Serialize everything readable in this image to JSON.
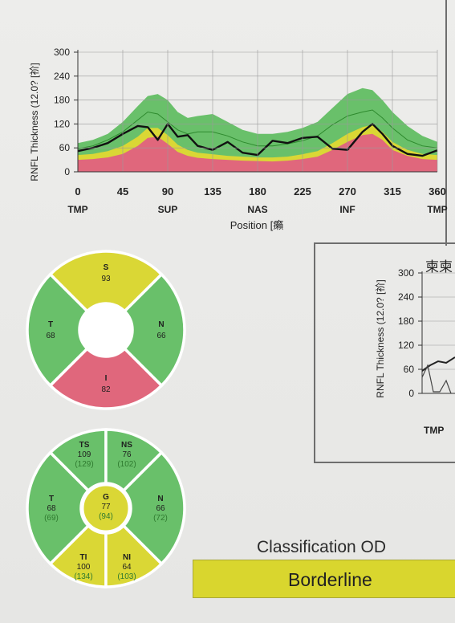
{
  "colors": {
    "normal": "#69c06a",
    "borderline": "#dad735",
    "outside": "#e0677c",
    "background": "#ebebe9",
    "curve": "#111111"
  },
  "main_chart": {
    "chart_data": {
      "type": "area",
      "ylabel": "RNFL Thickness (12.0? [祄]",
      "xlabel": "Position [癩",
      "yticks": [
        "0",
        "60",
        "120",
        "180",
        "240",
        "300"
      ],
      "xticks": [
        "0",
        "45",
        "90",
        "135",
        "180",
        "225",
        "270",
        "315",
        "360"
      ],
      "region_labels": [
        "TMP",
        "SUP",
        "NAS",
        "INF",
        "TMP"
      ],
      "xlim": [
        0,
        360
      ],
      "ylim": [
        0,
        300
      ],
      "x": [
        0,
        15,
        30,
        45,
        60,
        70,
        80,
        90,
        100,
        110,
        120,
        135,
        150,
        165,
        180,
        195,
        210,
        225,
        240,
        255,
        270,
        285,
        295,
        305,
        315,
        330,
        345,
        360
      ],
      "series": [
        {
          "role": "outside-band-top",
          "values": [
            30,
            32,
            36,
            45,
            65,
            85,
            88,
            70,
            50,
            40,
            35,
            32,
            30,
            28,
            27,
            26,
            28,
            32,
            38,
            55,
            75,
            92,
            95,
            80,
            55,
            40,
            32,
            30
          ]
        },
        {
          "role": "borderline-band-top",
          "values": [
            42,
            45,
            52,
            65,
            88,
            110,
            110,
            92,
            68,
            55,
            48,
            44,
            40,
            38,
            36,
            36,
            38,
            44,
            52,
            72,
            95,
            112,
            118,
            100,
            75,
            55,
            45,
            42
          ]
        },
        {
          "role": "normal-band-top",
          "values": [
            72,
            80,
            95,
            125,
            165,
            190,
            195,
            180,
            150,
            135,
            140,
            145,
            125,
            105,
            95,
            95,
            100,
            110,
            125,
            160,
            195,
            210,
            205,
            180,
            150,
            115,
            90,
            75
          ]
        },
        {
          "role": "normal-mean",
          "values": [
            58,
            65,
            80,
            100,
            130,
            150,
            145,
            125,
            105,
            95,
            100,
            100,
            90,
            75,
            65,
            65,
            70,
            78,
            90,
            118,
            140,
            150,
            155,
            135,
            110,
            80,
            65,
            60
          ]
        },
        {
          "role": "patient",
          "values": [
            52,
            60,
            72,
            95,
            115,
            112,
            80,
            120,
            88,
            92,
            65,
            55,
            75,
            48,
            42,
            78,
            72,
            85,
            88,
            58,
            55,
            100,
            120,
            95,
            65,
            45,
            40,
            54
          ]
        }
      ]
    }
  },
  "sector_chart": {
    "sectors": [
      {
        "label": "S",
        "value": "93",
        "status": "borderline"
      },
      {
        "label": "T",
        "value": "68",
        "status": "normal"
      },
      {
        "label": "N",
        "value": "66",
        "status": "normal"
      },
      {
        "label": "I",
        "value": "82",
        "status": "outside"
      }
    ]
  },
  "clock_chart": {
    "sectors": [
      {
        "label": "TS",
        "value": "109",
        "ref": "(129)",
        "status": "normal"
      },
      {
        "label": "NS",
        "value": "76",
        "ref": "(102)",
        "status": "normal"
      },
      {
        "label": "T",
        "value": "68",
        "ref": "(69)",
        "status": "normal"
      },
      {
        "label": "N",
        "value": "66",
        "ref": "(72)",
        "status": "normal"
      },
      {
        "label": "TI",
        "value": "100",
        "ref": "(134)",
        "status": "borderline"
      },
      {
        "label": "NI",
        "value": "64",
        "ref": "(103)",
        "status": "borderline"
      }
    ],
    "global": {
      "label": "G",
      "value": "77",
      "ref": "(94)",
      "status": "borderline"
    }
  },
  "second_chart": {
    "chart_data": {
      "type": "line",
      "title": "柬柬",
      "ylabel": "RNFL Thickness (12.0? [祄]",
      "yticks": [
        "0",
        "60",
        "120",
        "180",
        "240",
        "300"
      ],
      "xticks": [
        "TMP"
      ],
      "ylim": [
        0,
        300
      ]
    }
  },
  "classification": {
    "title": "Classification OD",
    "value": "Borderline"
  }
}
